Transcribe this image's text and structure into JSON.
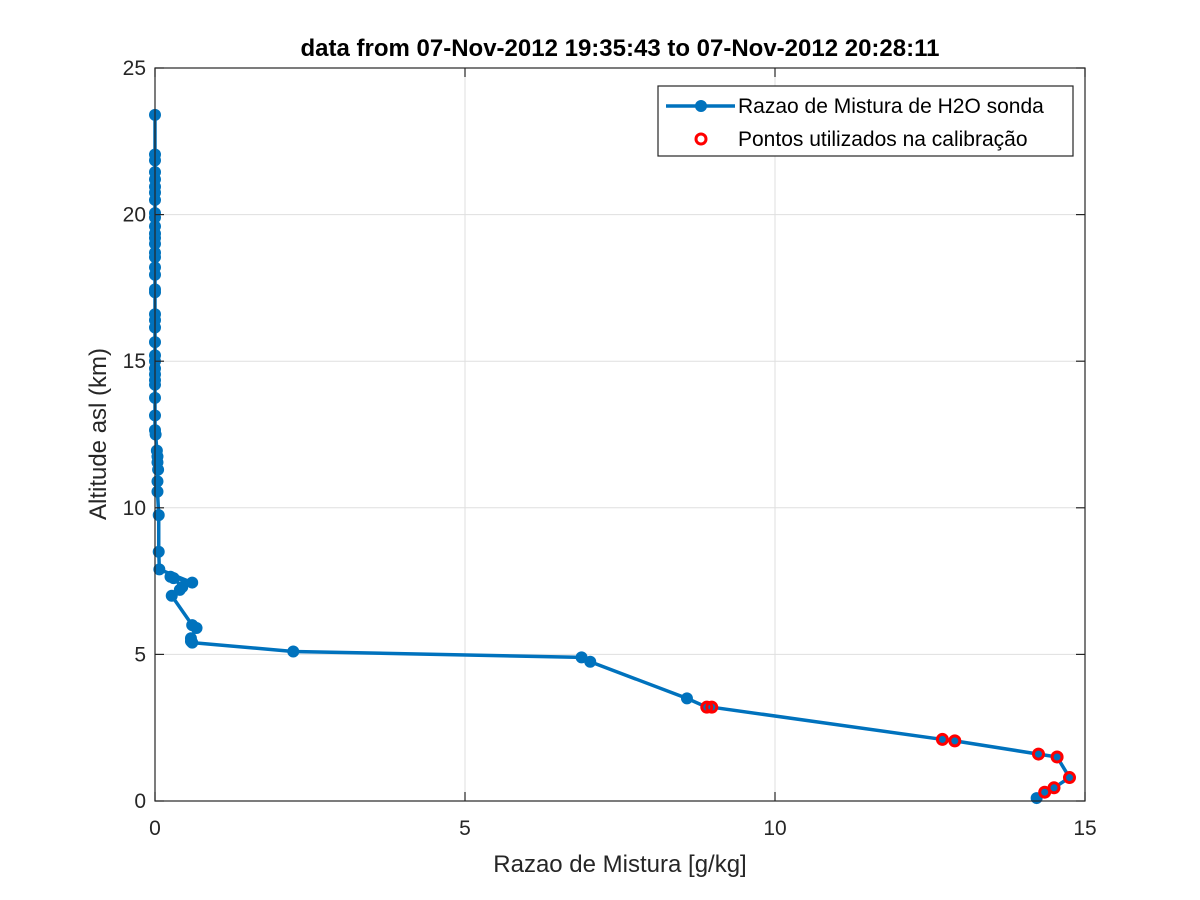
{
  "chart_data": {
    "type": "line",
    "title": "data from 07-Nov-2012 19:35:43 to 07-Nov-2012 20:28:11",
    "xlabel": "Razao de Mistura [g/kg]",
    "ylabel": "Altitude asl (km)",
    "xlim": [
      0,
      15
    ],
    "ylim": [
      0,
      25
    ],
    "xticks": [
      0,
      5,
      10,
      15
    ],
    "yticks": [
      0,
      5,
      10,
      15,
      20,
      25
    ],
    "grid": true,
    "legend_position": "top-right",
    "series": [
      {
        "name": "Razao de Mistura de H2O sonda",
        "style": "line-marker",
        "color": "#0072BD",
        "x": [
          14.22,
          14.35,
          14.5,
          14.75,
          14.55,
          14.25,
          12.9,
          12.7,
          8.98,
          8.9,
          8.58,
          7.02,
          6.88,
          2.23,
          0.6,
          0.58,
          0.58,
          0.67,
          0.6,
          0.27,
          0.4,
          0.44,
          0.3,
          0.25,
          0.6,
          0.07,
          0.06,
          0.06,
          0.04,
          0.04,
          0.05,
          0.04,
          0.04,
          0.03,
          0.01,
          0.0,
          0.0,
          0.0,
          0.0,
          0.0,
          0.0,
          0.0,
          0.0,
          0.0,
          0.0,
          0.0,
          0.0,
          0.0,
          0.0,
          0.0,
          0.0,
          0.0,
          0.0,
          0.0,
          0.0,
          0.0,
          0.0,
          0.0,
          0.0,
          0.0,
          0.0,
          0.0,
          0.0,
          0.0,
          0.0,
          0.0,
          0.0,
          0.0
        ],
        "y": [
          0.1,
          0.3,
          0.45,
          0.8,
          1.5,
          1.6,
          2.05,
          2.1,
          3.2,
          3.2,
          3.5,
          4.75,
          4.9,
          5.1,
          5.4,
          5.45,
          5.55,
          5.9,
          6.0,
          7.0,
          7.2,
          7.3,
          7.6,
          7.65,
          7.45,
          7.9,
          8.5,
          9.75,
          10.55,
          10.9,
          11.3,
          11.55,
          11.75,
          11.95,
          12.5,
          12.65,
          13.15,
          13.75,
          14.2,
          14.35,
          14.55,
          14.75,
          15.0,
          15.2,
          15.65,
          16.15,
          16.4,
          16.6,
          17.35,
          17.45,
          17.95,
          18.2,
          18.55,
          18.7,
          19.0,
          19.2,
          19.35,
          19.6,
          19.9,
          20.05,
          20.5,
          20.75,
          20.95,
          21.2,
          21.45,
          21.85,
          22.05,
          23.4
        ]
      },
      {
        "name": "Pontos utilizados na calibração",
        "style": "marker",
        "color": "#ff0000",
        "x": [
          14.35,
          14.5,
          14.75,
          14.55,
          14.25,
          12.9,
          12.7,
          8.98,
          8.9
        ],
        "y": [
          0.3,
          0.45,
          0.8,
          1.5,
          1.6,
          2.05,
          2.1,
          3.2,
          3.2
        ]
      }
    ]
  }
}
